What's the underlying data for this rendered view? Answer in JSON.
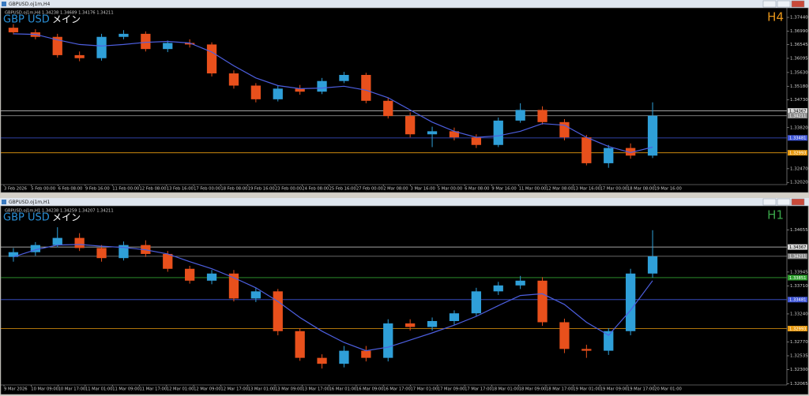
{
  "windows": [
    {
      "title": "GBPUSD.oj1m,H4",
      "info": "GBPUSD.oj1m,H4 1.34238 1.34689 1.34176 1.34211",
      "symbol": "GBP USD",
      "label": "メイン",
      "timeframe": "H4",
      "timeframe_color": "#e8961a",
      "chart_data": {
        "type": "candlestick",
        "up_color": "#2f9fd8",
        "down_color": "#e8501c",
        "ma_color": "#4d5fe0",
        "open": [
          1.371,
          1.3695,
          1.368,
          1.362,
          1.361,
          1.368,
          1.369,
          1.364,
          1.366,
          1.3655,
          1.356,
          1.352,
          1.3475,
          1.351,
          1.35,
          1.3535,
          1.3555,
          1.347,
          1.342,
          1.336,
          1.337,
          1.335,
          1.3325,
          1.3405,
          1.344,
          1.34,
          1.335,
          1.3265,
          1.3315,
          1.329
        ],
        "high": [
          1.3722,
          1.3705,
          1.369,
          1.3632,
          1.369,
          1.3702,
          1.3698,
          1.3668,
          1.3672,
          1.3662,
          1.357,
          1.3528,
          1.352,
          1.3522,
          1.3545,
          1.3565,
          1.3562,
          1.348,
          1.3432,
          1.3385,
          1.3382,
          1.336,
          1.3415,
          1.3462,
          1.3452,
          1.341,
          1.3358,
          1.3325,
          1.333,
          1.3465
        ],
        "low": [
          1.3688,
          1.3672,
          1.3612,
          1.36,
          1.3602,
          1.3672,
          1.3632,
          1.363,
          1.3645,
          1.355,
          1.351,
          1.3465,
          1.3468,
          1.349,
          1.3492,
          1.3528,
          1.3462,
          1.3412,
          1.335,
          1.3318,
          1.334,
          1.3315,
          1.3318,
          1.3398,
          1.3392,
          1.334,
          1.3258,
          1.325,
          1.328,
          1.3282
        ],
        "close": [
          1.3695,
          1.368,
          1.362,
          1.361,
          1.368,
          1.369,
          1.364,
          1.366,
          1.3655,
          1.356,
          1.352,
          1.3475,
          1.351,
          1.35,
          1.3535,
          1.3555,
          1.347,
          1.342,
          1.336,
          1.337,
          1.335,
          1.3325,
          1.3405,
          1.344,
          1.34,
          1.335,
          1.3265,
          1.3315,
          1.329,
          1.3421
        ],
        "ma": [
          1.369,
          1.3688,
          1.367,
          1.3655,
          1.365,
          1.3655,
          1.3662,
          1.3665,
          1.366,
          1.363,
          1.3585,
          1.3545,
          1.352,
          1.351,
          1.3512,
          1.3518,
          1.3505,
          1.348,
          1.344,
          1.34,
          1.337,
          1.335,
          1.3355,
          1.337,
          1.3395,
          1.339,
          1.335,
          1.332,
          1.33,
          1.3318
        ],
        "ylim": [
          1.32,
          1.377
        ],
        "yticks": [
          {
            "value": 1.3744,
            "label": "1.37440"
          },
          {
            "value": 1.3699,
            "label": "1.36990"
          },
          1.36545,
          1.36095,
          {
            "value": 1.3563,
            "label": "1.35630"
          },
          {
            "value": 1.3518,
            "label": "1.35180"
          },
          {
            "value": 1.3473,
            "label": "1.34730"
          },
          {
            "value": 1.3382,
            "label": "1.33820"
          },
          {
            "value": 1.3247,
            "label": "1.32470"
          },
          {
            "value": 1.3202,
            "label": "1.32020"
          }
        ],
        "hlines": [
          {
            "value": 1.34367,
            "color": "#d8d8d8"
          },
          {
            "value": 1.34211,
            "color": "#8a8a8a"
          },
          {
            "value": 1.33481,
            "color": "#3f56d8"
          },
          {
            "value": 1.32993,
            "color": "#e89a10"
          }
        ],
        "xtick_labels": [
          "3 Feb 2026",
          "5 Feb 00:00",
          "6 Feb 08:00",
          "9 Feb 16:00",
          "11 Feb 00:00",
          "12 Feb 08:00",
          "13 Feb 16:00",
          "17 Feb 00:00",
          "18 Feb 08:00",
          "19 Feb 16:00",
          "23 Feb 00:00",
          "24 Feb 08:00",
          "25 Feb 16:00",
          "27 Feb 00:00",
          "2 Mar 08:00",
          "3 Mar 16:00",
          "5 Mar 00:00",
          "6 Mar 08:00",
          "9 Mar 16:00",
          "11 Mar 00:00",
          "12 Mar 08:00",
          "13 Mar 16:00",
          "17 Mar 00:00",
          "18 Mar 08:00",
          "19 Mar 16:00"
        ]
      }
    },
    {
      "title": "GBPUSD.oj1m,H1",
      "info": "GBPUSD.oj1m,H1 1.34238 1.34259 1.34207 1.34211",
      "symbol": "GBP USD",
      "label": "メイン",
      "timeframe": "H1",
      "timeframe_color": "#3aa64a",
      "chart_data": {
        "type": "candlestick",
        "up_color": "#2f9fd8",
        "down_color": "#e8501c",
        "ma_color": "#4d5fe0",
        "open": [
          1.342,
          1.3428,
          1.344,
          1.3452,
          1.3435,
          1.3418,
          1.344,
          1.3425,
          1.34,
          1.338,
          1.3392,
          1.335,
          1.3362,
          1.3295,
          1.325,
          1.324,
          1.3262,
          1.325,
          1.3308,
          1.3302,
          1.3312,
          1.3325,
          1.3362,
          1.3372,
          1.338,
          1.331,
          1.3265,
          1.3262,
          1.3295,
          1.3392
        ],
        "high": [
          1.3435,
          1.3445,
          1.347,
          1.346,
          1.344,
          1.3446,
          1.3448,
          1.343,
          1.3405,
          1.3398,
          1.3398,
          1.3368,
          1.3366,
          1.33,
          1.3256,
          1.327,
          1.327,
          1.3315,
          1.3315,
          1.3318,
          1.333,
          1.3368,
          1.3378,
          1.3388,
          1.3386,
          1.3316,
          1.3272,
          1.33,
          1.34,
          1.3465
        ],
        "low": [
          1.3412,
          1.3422,
          1.3436,
          1.343,
          1.3412,
          1.3414,
          1.342,
          1.3395,
          1.3375,
          1.3374,
          1.3345,
          1.3344,
          1.3288,
          1.3245,
          1.3232,
          1.3234,
          1.3244,
          1.3244,
          1.3296,
          1.3296,
          1.3306,
          1.332,
          1.3356,
          1.3366,
          1.3304,
          1.3258,
          1.325,
          1.3255,
          1.3288,
          1.3385
        ],
        "close": [
          1.3428,
          1.344,
          1.3452,
          1.3435,
          1.3418,
          1.344,
          1.3425,
          1.34,
          1.338,
          1.3392,
          1.335,
          1.3362,
          1.3295,
          1.325,
          1.324,
          1.3262,
          1.325,
          1.3308,
          1.3302,
          1.3312,
          1.3325,
          1.3362,
          1.3372,
          1.338,
          1.331,
          1.3265,
          1.3262,
          1.3295,
          1.3392,
          1.3421
        ],
        "ma": [
          1.342,
          1.3432,
          1.344,
          1.3441,
          1.3438,
          1.3436,
          1.3432,
          1.3425,
          1.3412,
          1.34,
          1.3385,
          1.3368,
          1.3345,
          1.3318,
          1.3295,
          1.3276,
          1.3262,
          1.3268,
          1.328,
          1.3292,
          1.3305,
          1.332,
          1.3338,
          1.3355,
          1.3358,
          1.334,
          1.331,
          1.3288,
          1.333,
          1.338
        ],
        "ylim": [
          1.3207,
          1.3494
        ],
        "yticks": [
          1.34655,
          1.33945,
          {
            "value": 1.3371,
            "label": "1.33710"
          },
          {
            "value": 1.3324,
            "label": "1.33240"
          },
          {
            "value": 1.3277,
            "label": "1.32770"
          },
          1.32535,
          {
            "value": 1.323,
            "label": "1.32300"
          },
          1.32065
        ],
        "hlines": [
          {
            "value": 1.34367,
            "color": "#d8d8d8"
          },
          {
            "value": 1.34211,
            "color": "#8a8a8a"
          },
          {
            "value": 1.33851,
            "color": "#2fa02f"
          },
          {
            "value": 1.33481,
            "color": "#3f56d8"
          },
          {
            "value": 1.32993,
            "color": "#e89a10"
          }
        ],
        "xtick_labels": [
          "9 Mar 2026",
          "10 Mar 09:00",
          "10 Mar 17:00",
          "11 Mar 01:00",
          "11 Mar 09:00",
          "11 Mar 17:00",
          "12 Mar 01:00",
          "12 Mar 09:00",
          "12 Mar 17:00",
          "13 Mar 01:00",
          "13 Mar 09:00",
          "13 Mar 17:00",
          "16 Mar 01:00",
          "16 Mar 09:00",
          "16 Mar 17:00",
          "17 Mar 01:00",
          "17 Mar 09:00",
          "17 Mar 17:00",
          "18 Mar 01:00",
          "18 Mar 09:00",
          "18 Mar 17:00",
          "19 Mar 01:00",
          "19 Mar 09:00",
          "19 Mar 17:00",
          "20 Mar 01:00"
        ]
      }
    }
  ]
}
